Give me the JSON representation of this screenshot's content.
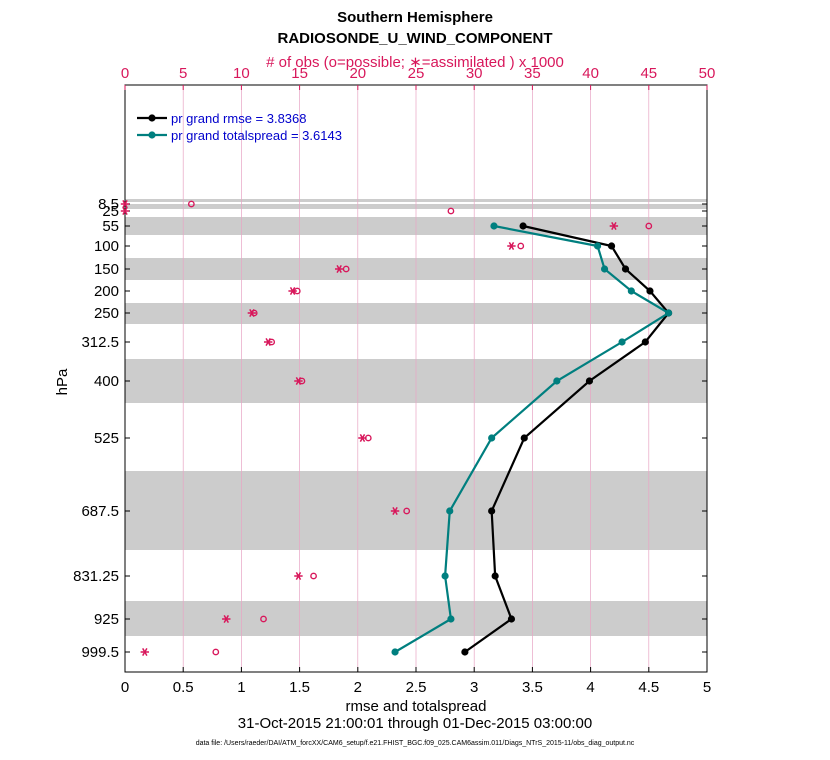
{
  "title": {
    "line1": "Southern Hemisphere",
    "line2": "RADIOSONDE_U_WIND_COMPONENT",
    "line3": "# of obs (o=possible; ∗=assimilated ) x 1000"
  },
  "footer": {
    "date_range": "31-Oct-2015 21:00:01 through 01-Dec-2015 03:00:00",
    "data_file": "data file: /Users/raeder/DAI/ATM_forcXX/CAM6_setup/f.e21.FHIST_BGC.f09_025.CAM6assim.011/Diags_NTrS_2015-11/obs_diag_output.nc"
  },
  "colors": {
    "rmse": "#000000",
    "spread": "#007f7f",
    "obs": "#d8175b",
    "legend_text": "#0000cc",
    "band": "#cccccc"
  },
  "chart_data": {
    "type": "line",
    "xlabel": "rmse and totalspread",
    "ylabel": "hPa",
    "xlim": [
      0,
      5
    ],
    "xticks": [
      "0",
      "0.5",
      "1",
      "1.5",
      "2",
      "2.5",
      "3",
      "3.5",
      "4",
      "4.5",
      "5"
    ],
    "top_axis": {
      "label": "# of obs (o=possible; ∗=assimilated ) x 1000",
      "lim": [
        0,
        50
      ],
      "ticks": [
        "0",
        "5",
        "10",
        "15",
        "20",
        "25",
        "30",
        "35",
        "40",
        "45",
        "50"
      ]
    },
    "y_orientation": "pressure decreasing upward",
    "levels": [
      "8.5",
      "25",
      "55",
      "100",
      "150",
      "200",
      "250",
      "312.5",
      "400",
      "525",
      "687.5",
      "831.25",
      "925",
      "999.5"
    ],
    "grid": true,
    "legend_position": "top-left",
    "series": [
      {
        "name": "pr grand rmse = 3.8368",
        "levels": [
          "55",
          "100",
          "150",
          "200",
          "250",
          "312.5",
          "400",
          "525",
          "687.5",
          "831.25",
          "925",
          "999.5"
        ],
        "values": [
          3.42,
          4.18,
          4.3,
          4.51,
          4.67,
          4.47,
          3.99,
          3.43,
          3.15,
          3.18,
          3.32,
          2.92
        ]
      },
      {
        "name": "pr grand totalspread = 3.6143",
        "levels": [
          "55",
          "100",
          "150",
          "200",
          "250",
          "312.5",
          "400",
          "525",
          "687.5",
          "831.25",
          "925",
          "999.5"
        ],
        "values": [
          3.17,
          4.06,
          4.12,
          4.35,
          4.67,
          4.27,
          3.71,
          3.15,
          2.79,
          2.75,
          2.8,
          2.32
        ]
      }
    ],
    "obs_possible_x1000": {
      "levels": [
        "8.5",
        "25",
        "55",
        "100",
        "150",
        "200",
        "250",
        "312.5",
        "400",
        "525",
        "687.5",
        "831.25",
        "925",
        "999.5"
      ],
      "values": [
        5.7,
        28.0,
        45.0,
        34.0,
        19.0,
        14.8,
        11.1,
        12.6,
        15.2,
        20.9,
        24.2,
        16.2,
        11.9,
        7.8
      ]
    },
    "obs_assimilated_x1000": {
      "levels": [
        "8.5",
        "25",
        "55",
        "100",
        "150",
        "200",
        "250",
        "312.5",
        "400",
        "525",
        "687.5",
        "831.25",
        "925",
        "999.5"
      ],
      "values": [
        0.0,
        0.0,
        42.0,
        33.2,
        18.4,
        14.4,
        10.9,
        12.3,
        14.9,
        20.4,
        23.2,
        14.9,
        8.7,
        1.7
      ]
    }
  }
}
